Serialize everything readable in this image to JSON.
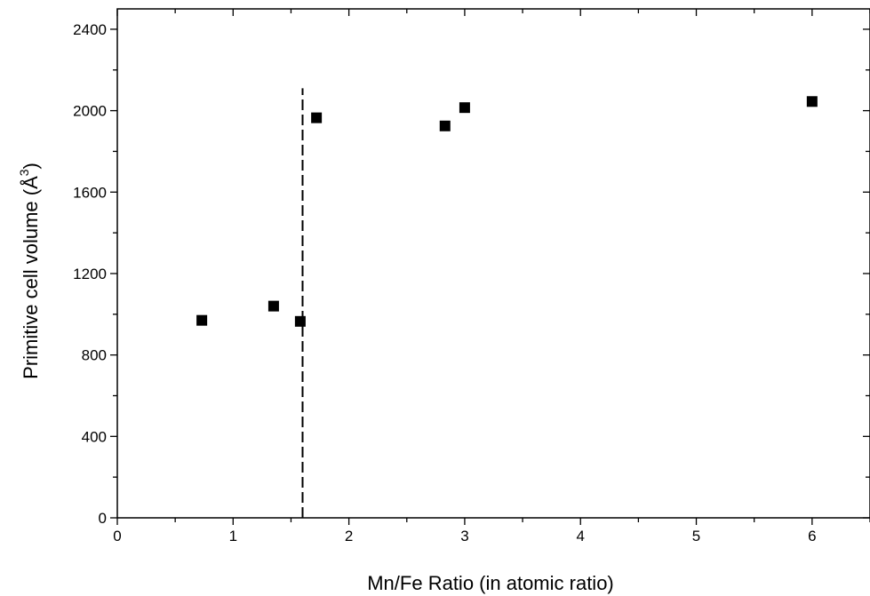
{
  "chart_data": {
    "type": "scatter",
    "xlabel": "Mn/Fe Ratio (in atomic ratio)",
    "ylabel_main": "Primitive cell volume (Å",
    "ylabel_sup": "3",
    "ylabel_tail": ")",
    "xlim": [
      0,
      6.5
    ],
    "ylim": [
      0,
      2500
    ],
    "x_ticks": [
      0,
      1,
      2,
      3,
      4,
      5,
      6
    ],
    "y_ticks": [
      0,
      400,
      800,
      1200,
      1600,
      2000,
      2400
    ],
    "x_tick_labels": [
      "0",
      "1",
      "2",
      "3",
      "4",
      "5",
      "6"
    ],
    "y_tick_labels": [
      "0",
      "400",
      "800",
      "1200",
      "1600",
      "2000",
      "2400"
    ],
    "series": [
      {
        "marker": "square",
        "color": "#000000",
        "points": [
          {
            "x": 0.73,
            "y": 970
          },
          {
            "x": 1.35,
            "y": 1040
          },
          {
            "x": 1.58,
            "y": 965
          },
          {
            "x": 1.72,
            "y": 1965
          },
          {
            "x": 2.83,
            "y": 1925
          },
          {
            "x": 3.0,
            "y": 2015
          },
          {
            "x": 6.0,
            "y": 2045
          }
        ]
      }
    ],
    "reference_lines": [
      {
        "orientation": "vertical",
        "x": 1.6,
        "y_from": 0,
        "y_to": 2110,
        "style": "dashed"
      }
    ],
    "grid": false,
    "legend": "none"
  }
}
